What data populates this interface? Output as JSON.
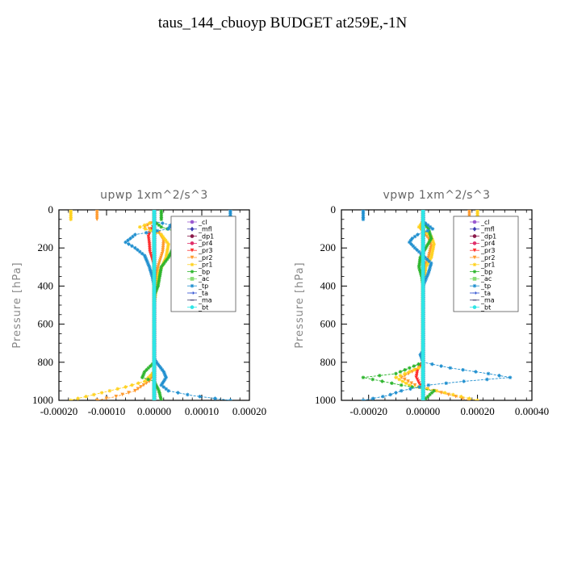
{
  "title": "taus_144_cbuoyp  BUDGET at259E,-1N",
  "chart_data": [
    {
      "type": "line",
      "title": "upwp   1xm^2/s^3",
      "ylabel": "Pressure [hPa]",
      "xlim": [
        -0.0002,
        0.0002
      ],
      "ylim": [
        1000,
        0
      ],
      "xticks": [
        -0.0002,
        -0.0001,
        0.0,
        0.0001,
        0.0002
      ],
      "xticklabels": [
        "-0.00020",
        "-0.00010",
        "0.00000",
        "0.00010",
        "0.00020"
      ],
      "yticks": [
        0,
        200,
        400,
        600,
        800,
        1000
      ],
      "yticklabels": [
        "0",
        "200",
        "400",
        "600",
        "800",
        "1000"
      ],
      "legend_position": "top-right",
      "series": [
        {
          "name": "_cl",
          "color": "#9b59d0",
          "marker": "dot",
          "points": [
            [
              0,
              0
            ],
            [
              0,
              1000
            ]
          ]
        },
        {
          "name": "_mfl",
          "color": "#3b3bb0",
          "marker": "diamond",
          "points": [
            [
              0,
              0
            ],
            [
              0,
              1000
            ]
          ]
        },
        {
          "name": "_dp1",
          "color": "#8b1a4a",
          "marker": "dot",
          "points": [
            [
              0,
              0
            ],
            [
              0,
              1000
            ]
          ]
        },
        {
          "name": "_pr4",
          "color": "#e0306a",
          "marker": "dot",
          "points": [
            [
              0,
              0
            ],
            [
              0,
              1000
            ]
          ]
        },
        {
          "name": "_pr3",
          "color": "#ff3030",
          "marker": "triangle",
          "points": [
            [
              0,
              80
            ],
            [
              -8e-06,
              110
            ],
            [
              -1.2e-05,
              140
            ],
            [
              -1e-05,
              180
            ],
            [
              -9e-06,
              220
            ],
            [
              -4e-06,
              260
            ],
            [
              0,
              300
            ],
            [
              0,
              1000
            ]
          ]
        },
        {
          "name": "_pr2",
          "color": "#ff9a2e",
          "marker": "triangle",
          "points": [
            [
              0,
              60
            ],
            [
              -2e-05,
              90
            ],
            [
              1e-05,
              120
            ],
            [
              2e-05,
              160
            ],
            [
              1.8e-05,
              220
            ],
            [
              8e-06,
              300
            ],
            [
              0,
              400
            ],
            [
              0,
              850
            ],
            [
              -1e-05,
              900
            ],
            [
              -4e-05,
              950
            ],
            [
              -8e-05,
              980
            ],
            [
              -0.00012,
              1000
            ]
          ]
        },
        {
          "name": "_pr1",
          "color": "#ffd21f",
          "marker": "star",
          "points": [
            [
              0,
              60
            ],
            [
              -3e-05,
              90
            ],
            [
              1.5e-05,
              130
            ],
            [
              3e-05,
              180
            ],
            [
              2.5e-05,
              250
            ],
            [
              1e-05,
              330
            ],
            [
              4e-06,
              420
            ],
            [
              0,
              500
            ],
            [
              0,
              850
            ],
            [
              -2e-05,
              900
            ],
            [
              -6e-05,
              930
            ],
            [
              -0.00011,
              960
            ],
            [
              -0.00016,
              990
            ],
            [
              -0.000175,
              1000
            ]
          ]
        },
        {
          "name": "_bp",
          "color": "#2db52d",
          "marker": "star",
          "points": [
            [
              0,
              60
            ],
            [
              1.5e-05,
              90
            ],
            [
              4e-05,
              110
            ],
            [
              5e-05,
              150
            ],
            [
              4e-05,
              200
            ],
            [
              3e-05,
              250
            ],
            [
              1.5e-05,
              300
            ],
            [
              8e-06,
              400
            ],
            [
              0,
              450
            ],
            [
              0,
              800
            ],
            [
              -2e-05,
              850
            ],
            [
              -2.5e-05,
              880
            ],
            [
              0,
              900
            ],
            [
              1e-05,
              950
            ],
            [
              1.5e-05,
              1000
            ]
          ]
        },
        {
          "name": "_ac",
          "color": "#86dc72",
          "marker": "square",
          "points": [
            [
              0,
              0
            ],
            [
              0,
              1000
            ]
          ]
        },
        {
          "name": "_tp",
          "color": "#1f8fcf",
          "marker": "star",
          "points": [
            [
              0,
              60
            ],
            [
              3.5e-05,
              80
            ],
            [
              3e-05,
              100
            ],
            [
              -4e-05,
              130
            ],
            [
              -5e-05,
              150
            ],
            [
              -6e-05,
              170
            ],
            [
              -4e-05,
              200
            ],
            [
              -2e-05,
              240
            ],
            [
              -1e-05,
              300
            ],
            [
              -4e-06,
              350
            ],
            [
              0,
              400
            ],
            [
              0,
              780
            ],
            [
              5e-06,
              800
            ],
            [
              2e-05,
              850
            ],
            [
              2.5e-05,
              880
            ],
            [
              1.5e-05,
              920
            ],
            [
              3e-05,
              950
            ],
            [
              8e-05,
              975
            ],
            [
              0.00016,
              1000
            ]
          ]
        },
        {
          "name": "_ta",
          "color": "#2d4fd1",
          "marker": "arrow",
          "points": [
            [
              0,
              0
            ],
            [
              0,
              1000
            ]
          ]
        },
        {
          "name": "_ma",
          "color": "#404070",
          "marker": "dash",
          "points": [
            [
              0,
              0
            ],
            [
              0,
              1000
            ]
          ]
        },
        {
          "name": "_bt",
          "color": "#2ee6e6",
          "marker": "dot",
          "points": [
            [
              0,
              0
            ],
            [
              0,
              1000
            ]
          ]
        }
      ]
    },
    {
      "type": "line",
      "title": "vpwp   1xm^2/s^3",
      "ylabel": "Pressure [hPa]",
      "xlim": [
        -0.0003,
        0.0004
      ],
      "ylim": [
        1000,
        0
      ],
      "xticks": [
        -0.0002,
        0.0,
        0.0002,
        0.0004
      ],
      "xticklabels": [
        "-0.00020",
        "0.00000",
        "0.00020",
        "0.00040"
      ],
      "yticks": [
        0,
        200,
        400,
        600,
        800,
        1000
      ],
      "yticklabels": [
        "0",
        "200",
        "400",
        "600",
        "800",
        "1000"
      ],
      "legend_position": "top-right",
      "series": [
        {
          "name": "_cl",
          "color": "#9b59d0",
          "marker": "dot",
          "points": [
            [
              0,
              0
            ],
            [
              0,
              1000
            ]
          ]
        },
        {
          "name": "_mfl",
          "color": "#3b3bb0",
          "marker": "diamond",
          "points": [
            [
              0,
              0
            ],
            [
              0,
              1000
            ]
          ]
        },
        {
          "name": "_dp1",
          "color": "#8b1a4a",
          "marker": "dot",
          "points": [
            [
              0,
              0
            ],
            [
              0,
              1000
            ]
          ]
        },
        {
          "name": "_pr4",
          "color": "#e0306a",
          "marker": "dot",
          "points": [
            [
              0,
              0
            ],
            [
              0,
              1000
            ]
          ]
        },
        {
          "name": "_pr3",
          "color": "#ff3030",
          "marker": "triangle",
          "points": [
            [
              0,
              0
            ],
            [
              0,
              800
            ],
            [
              -2e-05,
              840
            ],
            [
              -2.5e-05,
              880
            ],
            [
              -1.5e-05,
              910
            ],
            [
              0,
              940
            ],
            [
              0,
              1000
            ]
          ]
        },
        {
          "name": "_pr2",
          "color": "#ff9a2e",
          "marker": "triangle",
          "points": [
            [
              0,
              60
            ],
            [
              -1e-05,
              100
            ],
            [
              2e-05,
              150
            ],
            [
              3e-05,
              190
            ],
            [
              2e-05,
              250
            ],
            [
              5e-06,
              300
            ],
            [
              0,
              400
            ],
            [
              0,
              820
            ],
            [
              -4e-05,
              850
            ],
            [
              -8e-05,
              880
            ],
            [
              -3e-05,
              920
            ],
            [
              4e-05,
              950
            ],
            [
              0.00012,
              980
            ],
            [
              0.00017,
              1000
            ]
          ]
        },
        {
          "name": "_pr1",
          "color": "#ffd21f",
          "marker": "star",
          "points": [
            [
              0,
              60
            ],
            [
              -1.5e-05,
              90
            ],
            [
              3e-05,
              140
            ],
            [
              4e-05,
              180
            ],
            [
              3e-05,
              250
            ],
            [
              1e-05,
              300
            ],
            [
              0,
              400
            ],
            [
              0,
              820
            ],
            [
              -5e-05,
              850
            ],
            [
              -0.0001,
              880
            ],
            [
              -5e-05,
              920
            ],
            [
              5e-05,
              950
            ],
            [
              0.00014,
              980
            ],
            [
              0.0002,
              1000
            ]
          ]
        },
        {
          "name": "_bp",
          "color": "#2db52d",
          "marker": "star",
          "points": [
            [
              0,
              60
            ],
            [
              2e-05,
              100
            ],
            [
              3e-05,
              150
            ],
            [
              1e-05,
              200
            ],
            [
              -1e-05,
              250
            ],
            [
              -1.5e-05,
              300
            ],
            [
              -5e-06,
              350
            ],
            [
              0,
              400
            ],
            [
              0,
              800
            ],
            [
              -5e-05,
              830
            ],
            [
              -0.0001,
              860
            ],
            [
              -0.00022,
              880
            ],
            [
              -8e-05,
              920
            ],
            [
              4e-05,
              950
            ],
            [
              1e-05,
              990
            ],
            [
              0,
              1000
            ]
          ]
        },
        {
          "name": "_ac",
          "color": "#86dc72",
          "marker": "square",
          "points": [
            [
              0,
              0
            ],
            [
              0,
              1000
            ]
          ]
        },
        {
          "name": "_tp",
          "color": "#1f8fcf",
          "marker": "star",
          "points": [
            [
              0,
              60
            ],
            [
              3.5e-05,
              100
            ],
            [
              -2e-05,
              130
            ],
            [
              -4e-05,
              150
            ],
            [
              -5e-05,
              170
            ],
            [
              -3e-05,
              200
            ],
            [
              0,
              240
            ],
            [
              3e-05,
              280
            ],
            [
              2e-05,
              330
            ],
            [
              0,
              400
            ],
            [
              0,
              740
            ],
            [
              -1e-05,
              760
            ],
            [
              0,
              800
            ],
            [
              0.0001,
              830
            ],
            [
              0.00024,
              860
            ],
            [
              0.00032,
              880
            ],
            [
              0.00015,
              900
            ],
            [
              2e-05,
              920
            ],
            [
              -8e-05,
              950
            ],
            [
              -0.00013,
              975
            ],
            [
              -0.00022,
              1000
            ]
          ]
        },
        {
          "name": "_ta",
          "color": "#2d4fd1",
          "marker": "arrow",
          "points": [
            [
              0,
              0
            ],
            [
              0,
              1000
            ]
          ]
        },
        {
          "name": "_ma",
          "color": "#404070",
          "marker": "dash",
          "points": [
            [
              0,
              0
            ],
            [
              0,
              1000
            ]
          ]
        },
        {
          "name": "_bt",
          "color": "#2ee6e6",
          "marker": "dot",
          "points": [
            [
              0,
              0
            ],
            [
              0,
              1000
            ]
          ]
        }
      ]
    }
  ]
}
